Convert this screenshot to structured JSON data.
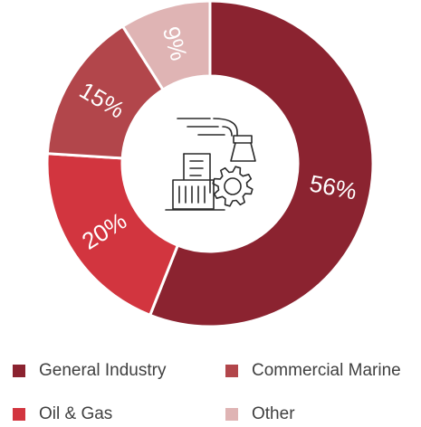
{
  "chart_data": {
    "type": "pie",
    "subtype": "donut",
    "categories": [
      "General Industry",
      "Commercial Marine",
      "Oil & Gas",
      "Other"
    ],
    "values": [
      56,
      15,
      20,
      9
    ],
    "data_labels": [
      "56%",
      "15%",
      "20%",
      "9%"
    ],
    "slice_order_clockwise_from_top": [
      "General Industry",
      "Oil & Gas",
      "Commercial Marine",
      "Other"
    ],
    "colors": {
      "General Industry": "#8b2330",
      "Commercial Marine": "#b2464b",
      "Oil & Gas": "#d2353f",
      "Other": "#dfb4b4"
    },
    "legend": {
      "placement": "bottom",
      "items": [
        {
          "label": "General Industry",
          "color": "#8b2330"
        },
        {
          "label": "Commercial Marine",
          "color": "#b2464b"
        },
        {
          "label": "Oil & Gas",
          "color": "#d2353f"
        },
        {
          "label": "Other",
          "color": "#dfb4b4"
        }
      ]
    },
    "center_icon": "industrial-factory-gear-icon"
  }
}
